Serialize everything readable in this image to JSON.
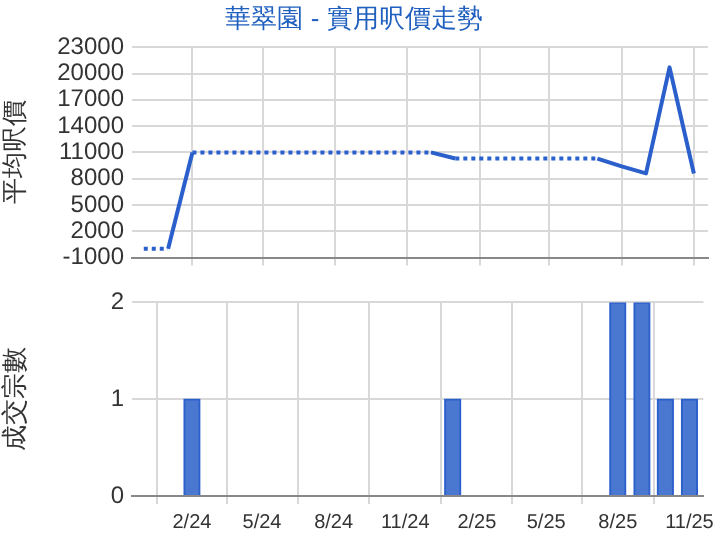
{
  "chart_data": [
    {
      "type": "line",
      "title": "華翠園 - 實用呎價走勢",
      "ylabel": "平均呎價",
      "x": [
        "2023-12",
        "2024-01",
        "2024-02",
        "2024-03",
        "2024-04",
        "2024-05",
        "2024-06",
        "2024-07",
        "2024-08",
        "2024-09",
        "2024-10",
        "2024-11",
        "2024-12",
        "2025-01",
        "2025-02",
        "2025-03",
        "2025-04",
        "2025-05",
        "2025-06",
        "2025-07",
        "2025-08",
        "2025-09",
        "2025-10",
        "2025-11"
      ],
      "series": [
        {
          "color": "#2a5fcc",
          "values": [
            0,
            0,
            11000,
            11000,
            11000,
            11000,
            11000,
            11000,
            11000,
            11000,
            11000,
            11000,
            11000,
            10300,
            10300,
            10300,
            10300,
            10300,
            10300,
            10300,
            9400,
            8600,
            20700,
            8600
          ]
        }
      ],
      "xlim": [
        "2023-11-16",
        "2025-11-19"
      ],
      "xticks": [
        {
          "value": "2024-02",
          "label": null
        },
        {
          "value": "2024-05",
          "label": null
        },
        {
          "value": "2024-08",
          "label": null
        },
        {
          "value": "2024-11",
          "label": null
        },
        {
          "value": "2025-02",
          "label": null
        },
        {
          "value": "2025-05",
          "label": null
        },
        {
          "value": "2025-08",
          "label": null
        },
        {
          "value": "2025-11",
          "label": null
        }
      ],
      "ylim": [
        -1000,
        23000
      ],
      "yticks": [
        -1000,
        2000,
        5000,
        8000,
        11000,
        14000,
        17000,
        20000,
        23000
      ],
      "grid": true,
      "legend": false,
      "marker": "none",
      "tick_labels": "y"
    },
    {
      "type": "bar",
      "ylabel": "成交宗數",
      "x": [
        "2023-12",
        "2024-01",
        "2024-02",
        "2024-03",
        "2024-04",
        "2024-05",
        "2024-06",
        "2024-07",
        "2024-08",
        "2024-09",
        "2024-10",
        "2024-11",
        "2024-12",
        "2025-01",
        "2025-02",
        "2025-03",
        "2025-04",
        "2025-05",
        "2025-06",
        "2025-07",
        "2025-08",
        "2025-09",
        "2025-10",
        "2025-11"
      ],
      "series": [
        {
          "color": "#4a78d0",
          "values": [
            0,
            0,
            1,
            0,
            0,
            0,
            0,
            0,
            0,
            0,
            0,
            0,
            0,
            1,
            0,
            0,
            0,
            0,
            0,
            0,
            2,
            2,
            1,
            1
          ]
        }
      ],
      "xlim": [
        "2023-11-16",
        "2025-11-19"
      ],
      "xticks": [
        {
          "value": "2024-02",
          "label": "2/24"
        },
        {
          "value": "2024-05",
          "label": "5/24"
        },
        {
          "value": "2024-08",
          "label": "8/24"
        },
        {
          "value": "2024-11",
          "label": "11/24"
        },
        {
          "value": "2025-02",
          "label": "2/25"
        },
        {
          "value": "2025-05",
          "label": "5/25"
        },
        {
          "value": "2025-08",
          "label": "8/25"
        },
        {
          "value": "2025-11",
          "label": "11/25"
        }
      ],
      "ylim": [
        0,
        2
      ],
      "yticks": [
        0,
        1,
        2
      ],
      "grid": true,
      "legend": false
    }
  ]
}
